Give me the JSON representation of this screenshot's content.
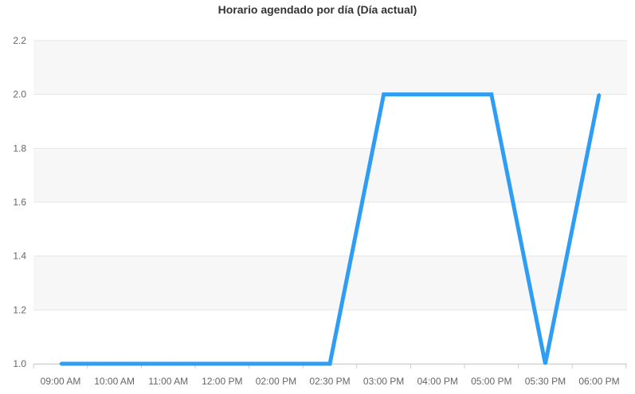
{
  "chart_data": {
    "type": "line",
    "title": "Horario agendado por día (Día actual)",
    "xlabel": "",
    "ylabel": "",
    "categories": [
      "09:00 AM",
      "10:00 AM",
      "11:00 AM",
      "12:00 PM",
      "02:00 PM",
      "02:30 PM",
      "03:00 PM",
      "04:00 PM",
      "05:00 PM",
      "05:30 PM",
      "06:00 PM"
    ],
    "series": [
      {
        "values": [
          1,
          1,
          1,
          1,
          1,
          1,
          2,
          2,
          2,
          1,
          2
        ],
        "color": "#2f9df4"
      }
    ],
    "ylim": [
      1.0,
      2.2
    ],
    "yticks": [
      "1.0",
      "1.2",
      "1.4",
      "1.6",
      "1.8",
      "2.0",
      "2.2"
    ],
    "grid": true,
    "legend": "none"
  }
}
